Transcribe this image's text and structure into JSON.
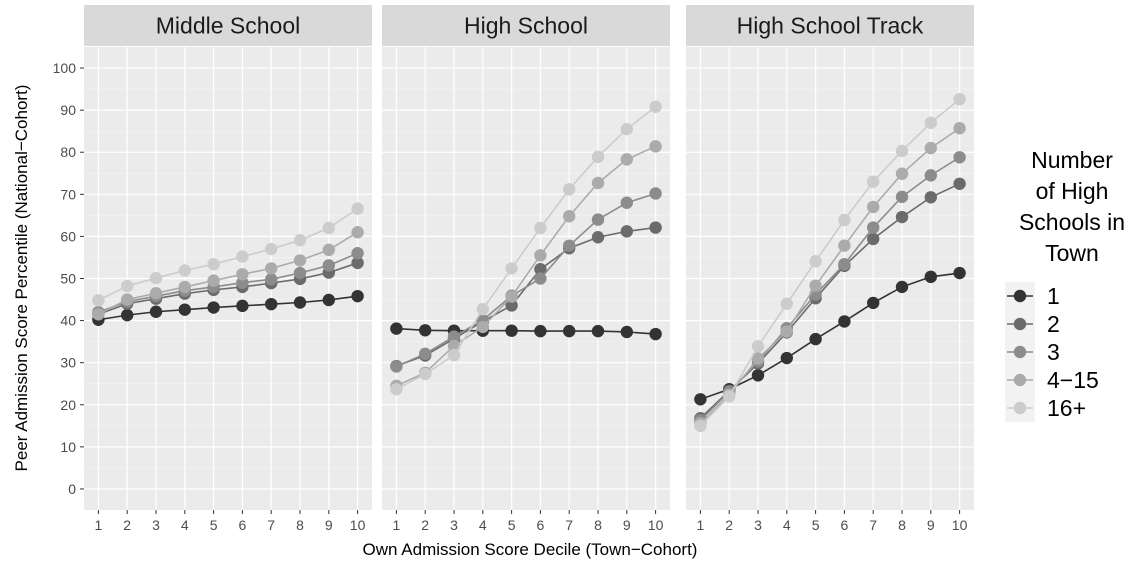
{
  "chart_data": {
    "type": "line",
    "xlabel": "Own Admission Score Decile (Town−Cohort)",
    "ylabel": "Peer Admission Score Percentile (National−Cohort)",
    "ylim": [
      -5,
      105
    ],
    "xlim": [
      0.5,
      10.5
    ],
    "y_ticks": [
      "0",
      "10",
      "20",
      "30",
      "40",
      "50",
      "60",
      "70",
      "80",
      "90",
      "100"
    ],
    "x_ticks": [
      "1",
      "2",
      "3",
      "4",
      "5",
      "6",
      "7",
      "8",
      "9",
      "10"
    ],
    "x": [
      1,
      2,
      3,
      4,
      5,
      6,
      7,
      8,
      9,
      10
    ],
    "grid": true,
    "legend": {
      "title_lines": [
        "Number",
        "of High",
        "Schools in",
        "Town"
      ],
      "placement": "right"
    },
    "colors": {
      "1": "#333333",
      "2": "#6b6b6b",
      "3": "#8c8c8c",
      "4−15": "#ababab",
      "16+": "#cccccc",
      "panel_bg": "#ebebeb",
      "strip_bg": "#d9d9d9"
    },
    "panels": [
      {
        "title": "Middle School",
        "series": [
          {
            "name": "1",
            "values": [
              40.2,
              41.3,
              42.1,
              42.6,
              43.1,
              43.5,
              43.9,
              44.3,
              44.9,
              45.8
            ]
          },
          {
            "name": "2",
            "values": [
              41.5,
              44.0,
              45.2,
              46.4,
              47.3,
              48.0,
              48.9,
              49.9,
              51.4,
              53.7
            ]
          },
          {
            "name": "3",
            "values": [
              42.0,
              44.5,
              45.8,
              47.1,
              48.0,
              49.0,
              49.8,
              51.3,
              53.1,
              56.0
            ]
          },
          {
            "name": "4−15",
            "values": [
              41.5,
              45.0,
              46.5,
              48.0,
              49.5,
              51.0,
              52.4,
              54.3,
              56.8,
              61.0
            ]
          },
          {
            "name": "16+",
            "values": [
              44.8,
              48.2,
              50.1,
              51.9,
              53.4,
              55.2,
              57.0,
              59.1,
              62.0,
              66.6
            ]
          }
        ]
      },
      {
        "title": "High School",
        "series": [
          {
            "name": "1",
            "values": [
              38.1,
              37.7,
              37.6,
              37.6,
              37.6,
              37.5,
              37.5,
              37.5,
              37.3,
              36.8
            ]
          },
          {
            "name": "2",
            "values": [
              29.2,
              31.7,
              35.7,
              39.8,
              43.6,
              52.2,
              57.2,
              59.8,
              61.2,
              62.1
            ]
          },
          {
            "name": "3",
            "values": [
              29.1,
              32.1,
              36.2,
              40.1,
              45.9,
              50.0,
              57.8,
              64.0,
              68.0,
              70.2
            ]
          },
          {
            "name": "4−15",
            "values": [
              24.5,
              27.6,
              34.0,
              38.5,
              45.7,
              55.5,
              64.8,
              72.7,
              78.3,
              81.4
            ]
          },
          {
            "name": "16+",
            "values": [
              23.7,
              27.3,
              31.8,
              42.7,
              52.4,
              62.0,
              71.2,
              78.9,
              85.5,
              90.8
            ]
          }
        ]
      },
      {
        "title": "High School Track",
        "series": [
          {
            "name": "1",
            "values": [
              21.3,
              23.7,
              27.0,
              31.1,
              35.6,
              39.8,
              44.2,
              48.0,
              50.4,
              51.3
            ]
          },
          {
            "name": "2",
            "values": [
              16.8,
              23.3,
              29.8,
              37.2,
              45.3,
              53.0,
              59.4,
              64.6,
              69.3,
              72.5
            ]
          },
          {
            "name": "3",
            "values": [
              16.3,
              23.1,
              30.3,
              38.2,
              46.2,
              53.4,
              62.1,
              69.4,
              74.5,
              78.8
            ]
          },
          {
            "name": "4−15",
            "values": [
              15.6,
              22.4,
              31.0,
              37.4,
              48.3,
              57.8,
              67.0,
              74.9,
              81.0,
              85.7
            ]
          },
          {
            "name": "16+",
            "values": [
              15.0,
              22.0,
              33.9,
              44.0,
              54.1,
              63.9,
              73.0,
              80.3,
              87.0,
              92.6
            ]
          }
        ]
      }
    ]
  }
}
